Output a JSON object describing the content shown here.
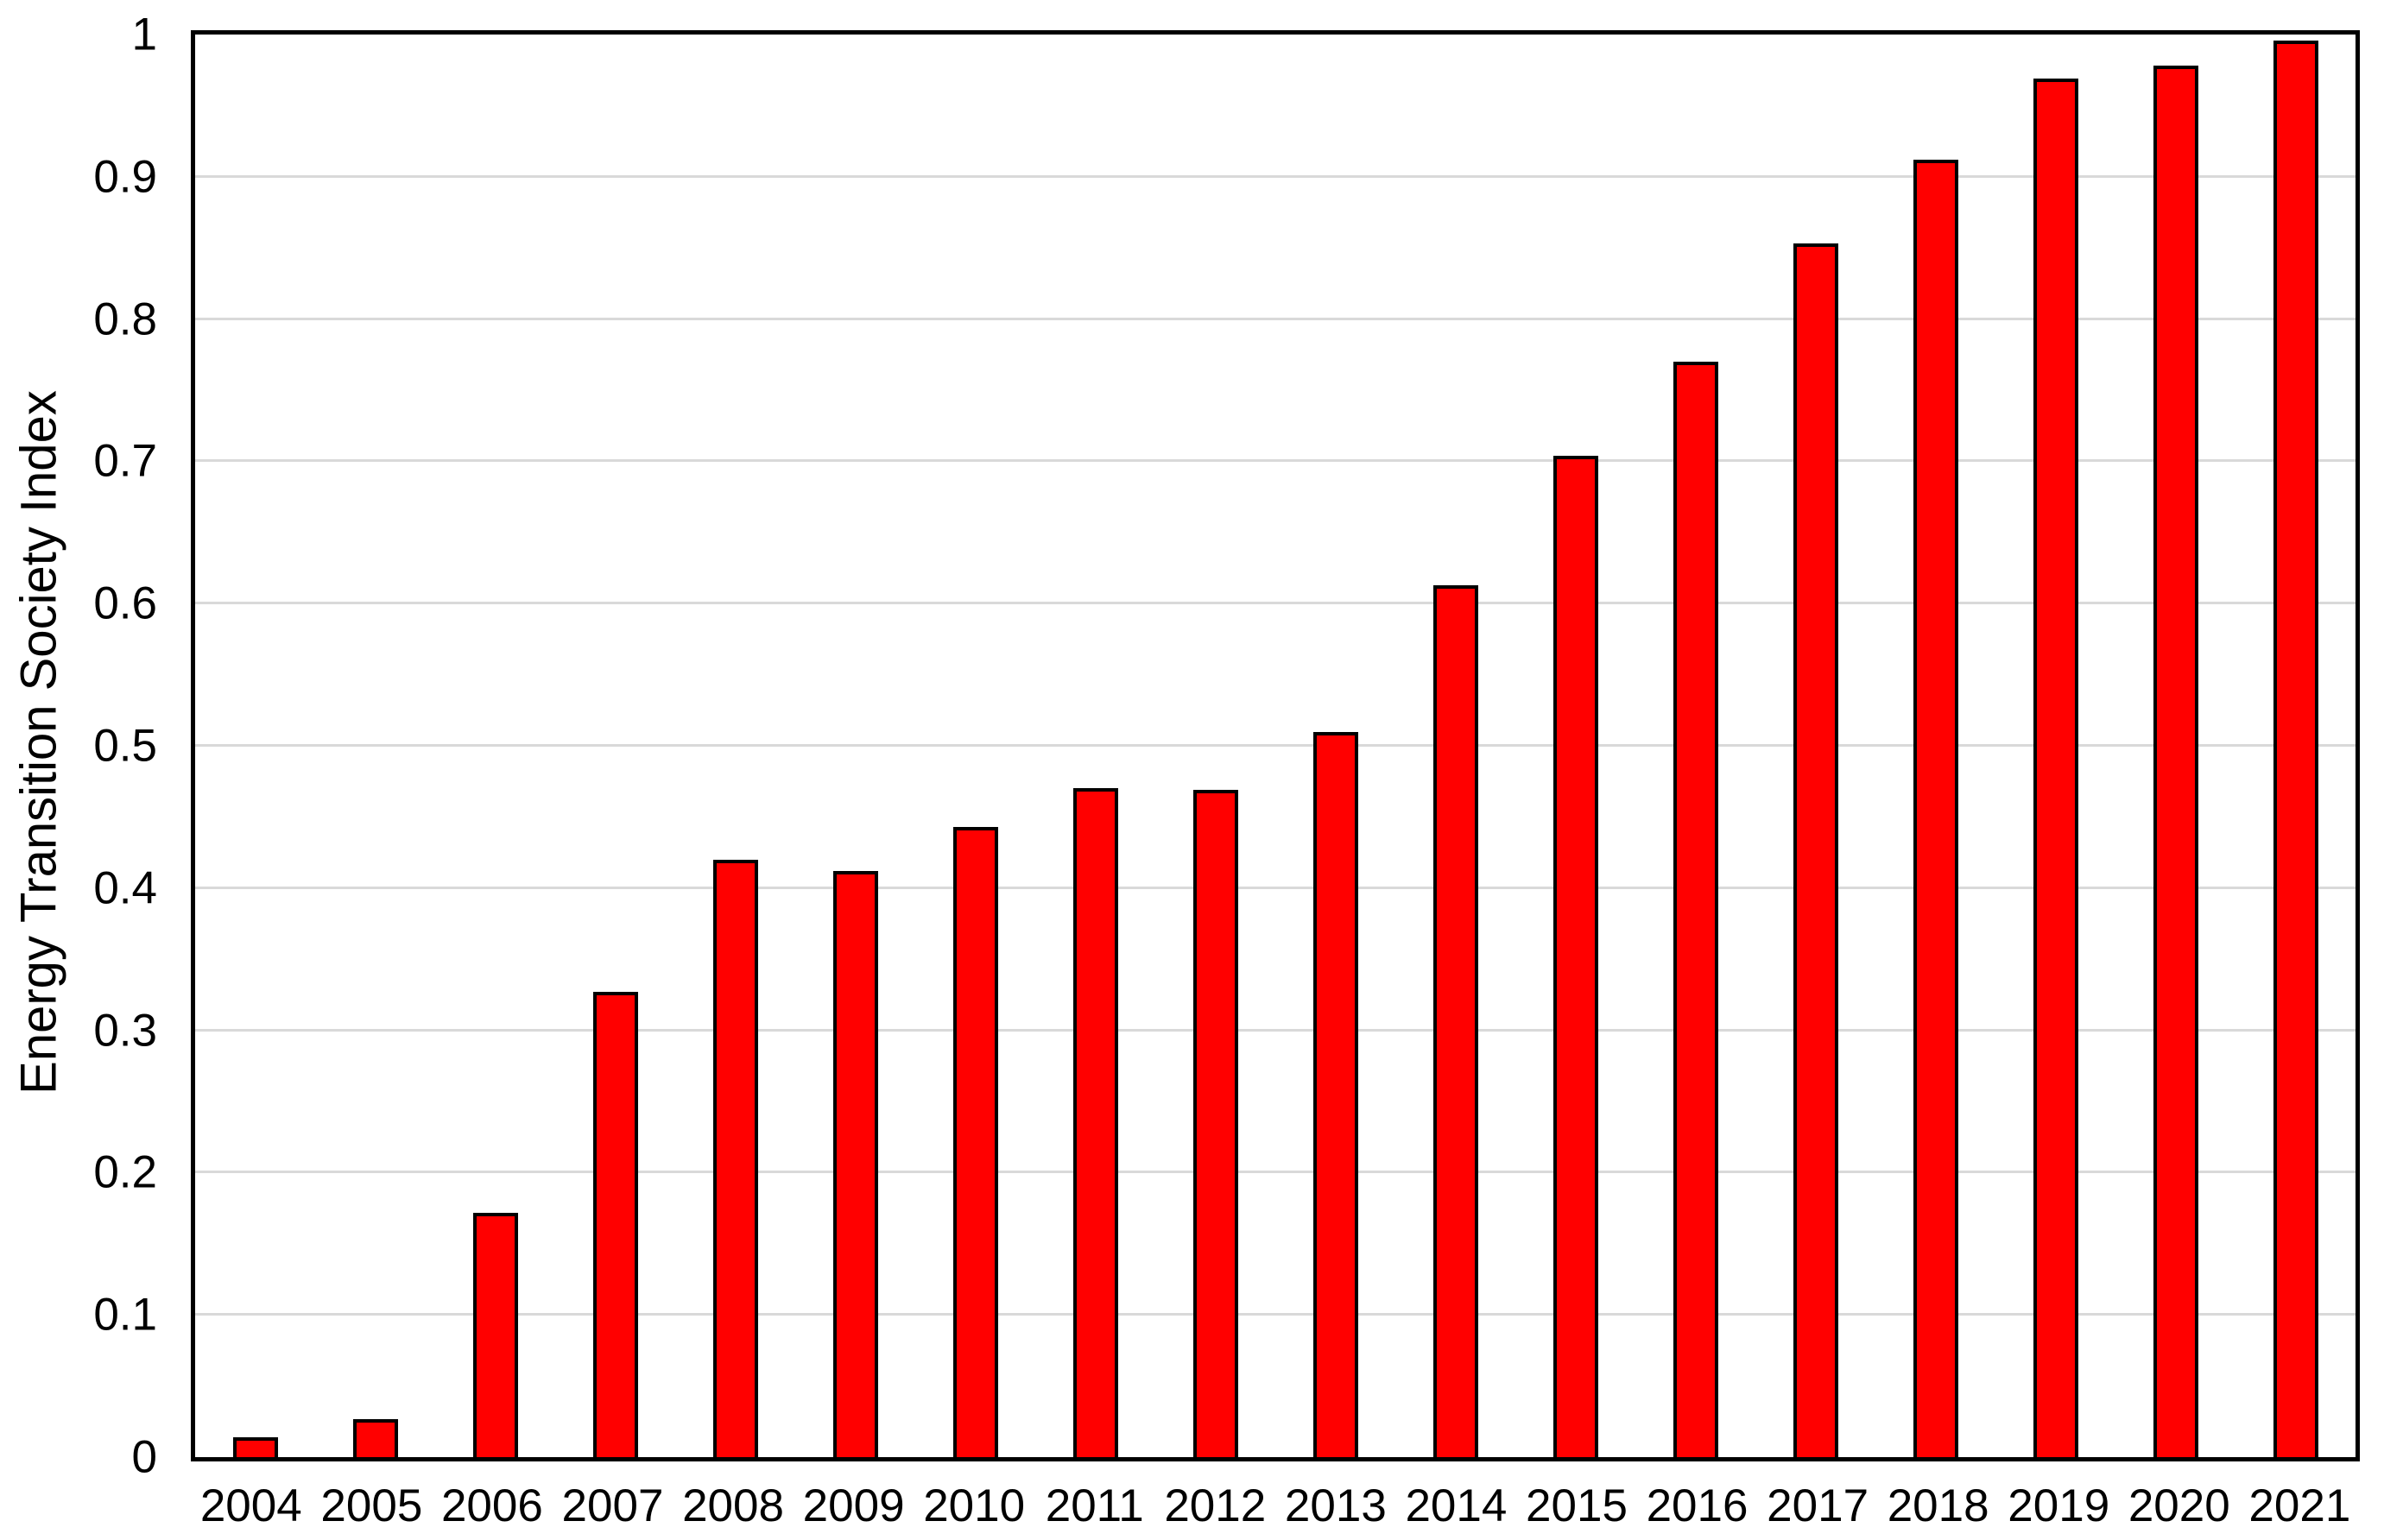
{
  "chart_data": {
    "type": "bar",
    "title": "",
    "xlabel": "",
    "ylabel": "Energy Transition Society Index",
    "categories": [
      "2004",
      "2005",
      "2006",
      "2007",
      "2008",
      "2009",
      "2010",
      "2011",
      "2012",
      "2013",
      "2014",
      "2015",
      "2016",
      "2017",
      "2018",
      "2019",
      "2020",
      "2021"
    ],
    "values": [
      0.014,
      0.027,
      0.172,
      0.327,
      0.42,
      0.412,
      0.443,
      0.47,
      0.469,
      0.51,
      0.613,
      0.704,
      0.77,
      0.853,
      0.912,
      0.969,
      0.978,
      0.996
    ],
    "ylim": [
      0,
      1
    ],
    "yticks": [
      0,
      0.1,
      0.2,
      0.3,
      0.4,
      0.5,
      0.6,
      0.7,
      0.8,
      0.9,
      1
    ],
    "ytick_labels": [
      "0",
      "0.1",
      "0.2",
      "0.3",
      "0.4",
      "0.5",
      "0.6",
      "0.7",
      "0.8",
      "0.9",
      "1"
    ],
    "gridline_values": [
      0.1,
      0.2,
      0.3,
      0.4,
      0.5,
      0.6,
      0.7,
      0.8,
      0.9
    ],
    "grid": "horizontal",
    "legend": "none",
    "bar_color": "#ff0000",
    "bar_border_color": "#000000",
    "gridline_color": "#d9d9d9",
    "axis_color": "#000000",
    "background_color": "#ffffff"
  }
}
